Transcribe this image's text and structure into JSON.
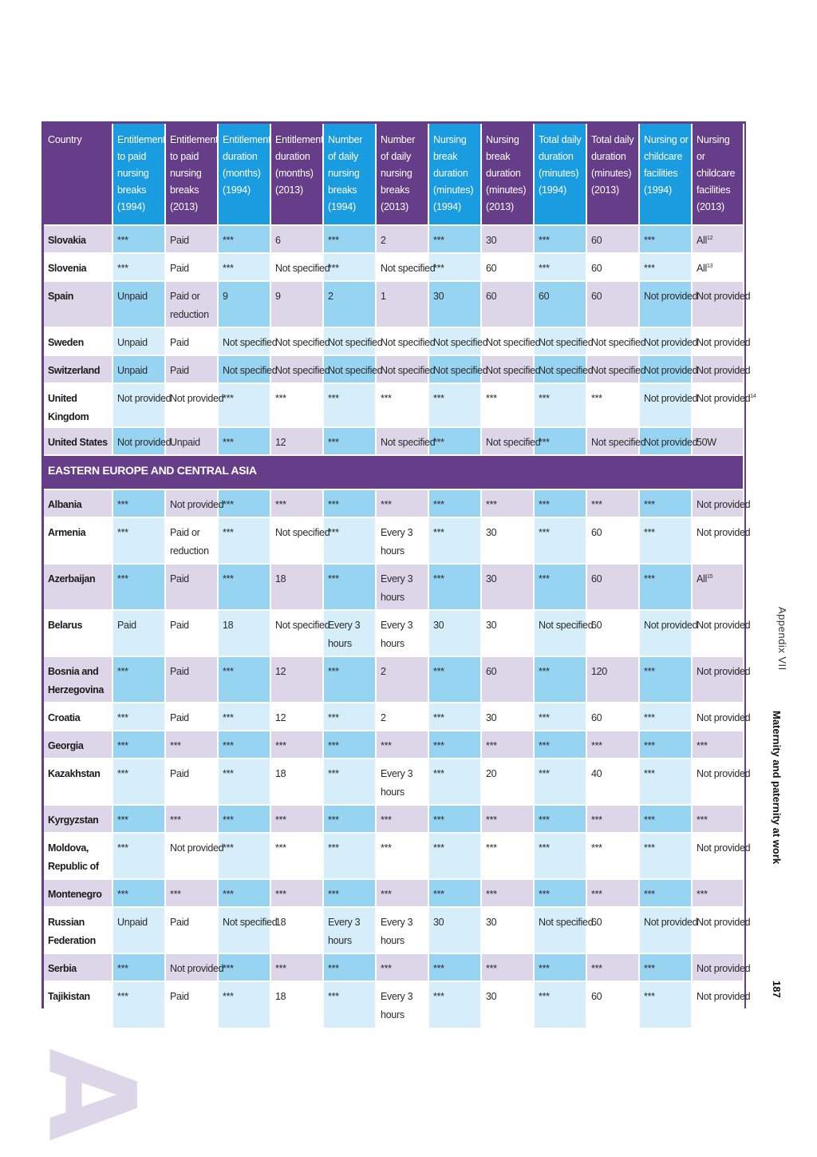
{
  "table": {
    "headers": [
      "Country",
      "Entitlement to paid nursing breaks (1994)",
      "Entitlement to paid nursing breaks (2013)",
      "Entitlement duration (months) (1994)",
      "Entitlement duration (months) (2013)",
      "Number of daily nursing breaks (1994)",
      "Number of daily nursing breaks (2013)",
      "Nursing break duration (minutes) (1994)",
      "Nursing break duration (minutes) (2013)",
      "Total daily duration (minutes) (1994)",
      "Total daily duration (minutes) (2013)",
      "Nursing or childcare facilities (1994)",
      "Nursing or childcare facilities (2013)"
    ],
    "colors": {
      "purple": "#653d88",
      "blue": "#1a9de0",
      "light_purple": "#ddd5e8",
      "light_blue": "#97d4f2",
      "pale_blue": "#d6edfa"
    },
    "rows_top": [
      {
        "cells": [
          "Slovakia",
          "***",
          "Paid",
          "***",
          "6",
          "***",
          "2",
          "***",
          "30",
          "***",
          "60",
          "***",
          "All"
        ],
        "note": "12"
      },
      {
        "cells": [
          "Slovenia",
          "***",
          "Paid",
          "***",
          "Not specified",
          "***",
          "Not specified",
          "***",
          "60",
          "***",
          "60",
          "***",
          "All"
        ],
        "note": "13"
      },
      {
        "cells": [
          "Spain",
          "Unpaid",
          "Paid or reduction",
          "9",
          "9",
          "2",
          "1",
          "30",
          "60",
          "60",
          "60",
          "Not provided",
          "Not provided"
        ],
        "note": ""
      },
      {
        "cells": [
          "Sweden",
          "Unpaid",
          "Paid",
          "Not specified",
          "Not specified",
          "Not specified",
          "Not specified",
          "Not specified",
          "Not specified",
          "Not specified",
          "Not specified",
          "Not provided",
          "Not provided"
        ],
        "note": ""
      },
      {
        "cells": [
          "Switzerland",
          "Unpaid",
          "Paid",
          "Not specified",
          "Not specified",
          "Not specified",
          "Not specified",
          "Not specified",
          "Not specified",
          "Not specified",
          "Not specified",
          "Not provided",
          "Not provided"
        ],
        "note": ""
      },
      {
        "cells": [
          "United Kingdom",
          "Not provided",
          "Not provided",
          "***",
          "***",
          "***",
          "***",
          "***",
          "***",
          "***",
          "***",
          "Not provided",
          "Not provided"
        ],
        "note": "14"
      },
      {
        "cells": [
          "United States",
          "Not provided",
          "Unpaid",
          "***",
          "12",
          "***",
          "Not specified",
          "***",
          "Not specified",
          "***",
          "Not specified",
          "Not provided",
          "50W"
        ],
        "note": ""
      }
    ],
    "region_label": "EASTERN EUROPE AND CENTRAL ASIA",
    "rows_bottom": [
      {
        "cells": [
          "Albania",
          "***",
          "Not provided",
          "***",
          "***",
          "***",
          "***",
          "***",
          "***",
          "***",
          "***",
          "***",
          "Not provided"
        ],
        "note": ""
      },
      {
        "cells": [
          "Armenia",
          "***",
          "Paid or reduction",
          "***",
          "Not specified",
          "***",
          "Every 3 hours",
          "***",
          "30",
          "***",
          "60",
          "***",
          "Not provided"
        ],
        "note": ""
      },
      {
        "cells": [
          "Azerbaijan",
          "***",
          "Paid",
          "***",
          "18",
          "***",
          "Every 3 hours",
          "***",
          "30",
          "***",
          "60",
          "***",
          "All"
        ],
        "note": "15"
      },
      {
        "cells": [
          "Belarus",
          "Paid",
          "Paid",
          "18",
          "Not specified",
          "Every 3 hours",
          "Every 3 hours",
          "30",
          "30",
          "Not specified",
          "60",
          "Not provided",
          "Not provided"
        ],
        "note": ""
      },
      {
        "cells": [
          "Bosnia and Herzegovina",
          "***",
          "Paid",
          "***",
          "12",
          "***",
          "2",
          "***",
          "60",
          "***",
          "120",
          "***",
          "Not provided"
        ],
        "note": ""
      },
      {
        "cells": [
          "Croatia",
          "***",
          "Paid",
          "***",
          "12",
          "***",
          "2",
          "***",
          "30",
          "***",
          "60",
          "***",
          "Not provided"
        ],
        "note": ""
      },
      {
        "cells": [
          "Georgia",
          "***",
          "***",
          "***",
          "***",
          "***",
          "***",
          "***",
          "***",
          "***",
          "***",
          "***",
          "***"
        ],
        "note": ""
      },
      {
        "cells": [
          "Kazakhstan",
          "***",
          "Paid",
          "***",
          "18",
          "***",
          "Every 3 hours",
          "***",
          "20",
          "***",
          "40",
          "***",
          "Not provided"
        ],
        "note": ""
      },
      {
        "cells": [
          "Kyrgyzstan",
          "***",
          "***",
          "***",
          "***",
          "***",
          "***",
          "***",
          "***",
          "***",
          "***",
          "***",
          "***"
        ],
        "note": ""
      },
      {
        "cells": [
          "Moldova, Republic of",
          "***",
          "Not provided",
          "***",
          "***",
          "***",
          "***",
          "***",
          "***",
          "***",
          "***",
          "***",
          "Not provided"
        ],
        "note": ""
      },
      {
        "cells": [
          "Montenegro",
          "***",
          "***",
          "***",
          "***",
          "***",
          "***",
          "***",
          "***",
          "***",
          "***",
          "***",
          "***"
        ],
        "note": ""
      },
      {
        "cells": [
          "Russian Federation",
          "Unpaid",
          "Paid",
          "Not specified",
          "18",
          "Every 3 hours",
          "Every 3 hours",
          "30",
          "30",
          "Not specified",
          "60",
          "Not provided",
          "Not provided"
        ],
        "note": ""
      },
      {
        "cells": [
          "Serbia",
          "***",
          "Not provided",
          "***",
          "***",
          "***",
          "***",
          "***",
          "***",
          "***",
          "***",
          "***",
          "Not provided"
        ],
        "note": ""
      },
      {
        "cells": [
          "Tajikistan",
          "***",
          "Paid",
          "***",
          "18",
          "***",
          "Every 3 hours",
          "***",
          "30",
          "***",
          "60",
          "***",
          "Not provided"
        ],
        "note": ""
      }
    ]
  },
  "sidebar": {
    "appendix": "Appendix VII",
    "title": "Maternity and paternity at work",
    "page_number": "187"
  },
  "decor": {
    "letter": "A"
  }
}
